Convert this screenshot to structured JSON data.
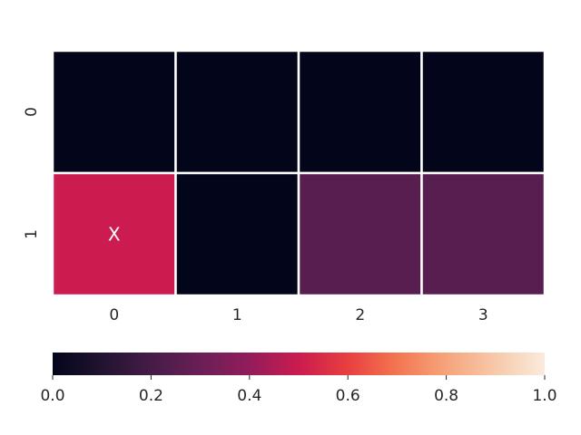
{
  "chart_data": {
    "type": "heatmap",
    "title": "",
    "xlabel": "",
    "ylabel": "",
    "x_categories": [
      "0",
      "1",
      "2",
      "3"
    ],
    "y_categories": [
      "0",
      "1"
    ],
    "values": [
      [
        0.0,
        0.0,
        0.0,
        0.0
      ],
      [
        0.5,
        0.0,
        0.25,
        0.25
      ]
    ],
    "annotations": [
      [
        "",
        "",
        "",
        ""
      ],
      [
        "X",
        "",
        "",
        ""
      ]
    ],
    "colorbar": {
      "orientation": "horizontal",
      "placement": "bottom",
      "range": [
        0.0,
        1.0
      ],
      "ticks": [
        "0.0",
        "0.2",
        "0.4",
        "0.6",
        "0.8",
        "1.0"
      ],
      "colormap": "rocket",
      "color_stops": [
        {
          "t": 0.0,
          "color": "#03051a"
        },
        {
          "t": 0.1,
          "color": "#221331"
        },
        {
          "t": 0.2,
          "color": "#451c47"
        },
        {
          "t": 0.3,
          "color": "#6a1f56"
        },
        {
          "t": 0.4,
          "color": "#921c5b"
        },
        {
          "t": 0.5,
          "color": "#cb1b4f"
        },
        {
          "t": 0.6,
          "color": "#e83f3f"
        },
        {
          "t": 0.7,
          "color": "#f37651"
        },
        {
          "t": 0.8,
          "color": "#f6a47b"
        },
        {
          "t": 0.9,
          "color": "#f7c9aa"
        },
        {
          "t": 1.0,
          "color": "#faebdd"
        }
      ]
    },
    "cell_separator_color": "#ffffff",
    "annotation_color": "#ffffff",
    "grid": false
  }
}
